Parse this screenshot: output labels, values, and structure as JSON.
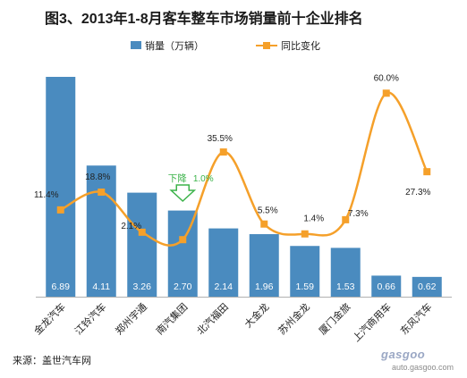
{
  "title": "图3、2013年1-8月客车整车市场销量前十企业排名",
  "source": "来源：盖世汽车网",
  "watermark": {
    "brand": "gasgoo",
    "url": "auto.gasgoo.com"
  },
  "colors": {
    "bar": "#4a8bbf",
    "line": "#f5a02a",
    "marker": "#f5a02a",
    "arrow": "#3cb34a"
  },
  "annotation": {
    "text": "下降",
    "value": "1.0%"
  },
  "chart_data": {
    "type": "bar",
    "categories": [
      "金龙汽车",
      "江铃汽车",
      "郑州宇通",
      "南汽集团",
      "北汽福田",
      "大金龙",
      "苏州金龙",
      "厦门金旅",
      "上汽商用车",
      "东风汽车"
    ],
    "series": [
      {
        "name": "销量（万辆）",
        "type": "bar",
        "values": [
          6.89,
          4.11,
          3.26,
          2.7,
          2.14,
          1.96,
          1.59,
          1.53,
          0.66,
          0.62
        ],
        "labels": [
          "6.89",
          "4.11",
          "3.26",
          "2.70",
          "2.14",
          "1.96",
          "1.59",
          "1.53",
          "0.66",
          "0.62"
        ]
      },
      {
        "name": "同比变化",
        "type": "line",
        "values": [
          11.4,
          18.8,
          2.1,
          -1.0,
          35.5,
          5.5,
          1.4,
          7.3,
          60.0,
          27.3
        ],
        "labels": [
          "11.4%",
          "18.8%",
          "2.1%",
          "",
          "35.5%",
          "5.5%",
          "1.4%",
          "7.3%",
          "60.0%",
          "27.3%"
        ]
      }
    ],
    "legend": "top-center",
    "grid": false
  }
}
